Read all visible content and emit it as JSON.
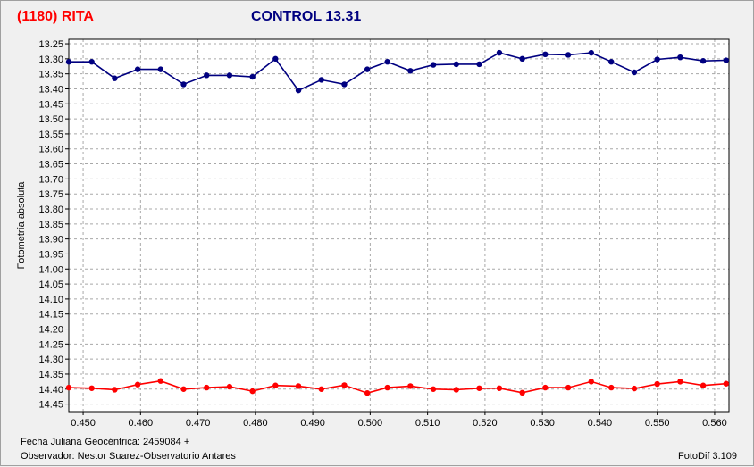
{
  "header": {
    "asteroid_title": "(1180) RITA",
    "control_title": "CONTROL 13.31"
  },
  "footer": {
    "julian_label": "Fecha Juliana Geocéntrica: 2459084 +",
    "observer_label": "Observador: Nestor Suarez-Observatorio Antares",
    "software_label": "FotoDif 3.109"
  },
  "chart_data": {
    "type": "line",
    "ylabel": "Fotometría absoluta",
    "xlabel": "",
    "xlim": [
      0.4475,
      0.5625
    ],
    "ylim": [
      14.475,
      13.235
    ],
    "y_inverted": true,
    "grid": true,
    "x_ticks": [
      "0.450",
      "0.460",
      "0.470",
      "0.480",
      "0.490",
      "0.500",
      "0.510",
      "0.520",
      "0.530",
      "0.540",
      "0.550",
      "0.560"
    ],
    "y_ticks": [
      "13.25",
      "13.30",
      "13.35",
      "13.40",
      "13.45",
      "13.50",
      "13.55",
      "13.60",
      "13.65",
      "13.70",
      "13.75",
      "13.80",
      "13.85",
      "13.90",
      "13.95",
      "14.00",
      "14.05",
      "14.10",
      "14.15",
      "14.20",
      "14.25",
      "14.30",
      "14.35",
      "14.40",
      "14.45"
    ],
    "x": [
      0.4475,
      0.4515,
      0.4555,
      0.4595,
      0.4635,
      0.4675,
      0.4715,
      0.4755,
      0.4795,
      0.4835,
      0.4875,
      0.4915,
      0.4955,
      0.4995,
      0.503,
      0.507,
      0.511,
      0.515,
      0.519,
      0.5225,
      0.5265,
      0.5305,
      0.5345,
      0.5385,
      0.542,
      0.546,
      0.55,
      0.554,
      0.558,
      0.562
    ],
    "series": [
      {
        "color": "#000080",
        "values": [
          13.31,
          13.31,
          13.365,
          13.335,
          13.335,
          13.385,
          13.355,
          13.355,
          13.36,
          13.3,
          13.405,
          13.37,
          13.385,
          13.335,
          13.31,
          13.34,
          13.32,
          13.318,
          13.318,
          13.28,
          13.3,
          13.285,
          13.287,
          13.28,
          13.31,
          13.345,
          13.302,
          13.295,
          13.307,
          13.305
        ]
      },
      {
        "color": "#ff0000",
        "values": [
          14.395,
          14.397,
          14.402,
          14.385,
          14.373,
          14.4,
          14.395,
          14.392,
          14.407,
          14.388,
          14.39,
          14.4,
          14.387,
          14.413,
          14.395,
          14.39,
          14.4,
          14.402,
          14.397,
          14.397,
          14.412,
          14.395,
          14.395,
          14.375,
          14.395,
          14.398,
          14.383,
          14.375,
          14.388,
          14.382
        ]
      }
    ]
  }
}
